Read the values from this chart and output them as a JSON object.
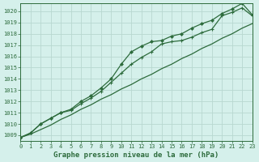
{
  "title": "",
  "xlabel": "Graphe pression niveau de la mer (hPa)",
  "ylabel": "",
  "bg_color": "#d5f0eb",
  "grid_color": "#b8d8d0",
  "line_color": "#2d6b3c",
  "xlim": [
    0,
    23
  ],
  "ylim": [
    1008.5,
    1020.7
  ],
  "yticks": [
    1009,
    1010,
    1011,
    1012,
    1013,
    1014,
    1015,
    1016,
    1017,
    1018,
    1019,
    1020
  ],
  "xticks": [
    0,
    1,
    2,
    3,
    4,
    5,
    6,
    7,
    8,
    9,
    10,
    11,
    12,
    13,
    14,
    15,
    16,
    17,
    18,
    19,
    20,
    21,
    22,
    23
  ],
  "line_upper_x": [
    0,
    1,
    2,
    3,
    4,
    5,
    6,
    7,
    8,
    9,
    10,
    11,
    12,
    13,
    14,
    15,
    16,
    17,
    18,
    19,
    20,
    21,
    22,
    23
  ],
  "line_upper_y": [
    1008.8,
    1009.2,
    1010.0,
    1010.5,
    1011.0,
    1011.3,
    1012.0,
    1012.5,
    1013.2,
    1014.0,
    1015.3,
    1016.4,
    1016.9,
    1017.3,
    1017.4,
    1017.8,
    1018.0,
    1018.5,
    1018.9,
    1019.2,
    1019.8,
    1020.2,
    1020.7,
    1019.7
  ],
  "line_mid_x": [
    0,
    1,
    2,
    3,
    4,
    5,
    6,
    7,
    8,
    9,
    10,
    11,
    12,
    13,
    14,
    15,
    16,
    17,
    18,
    19,
    20,
    21,
    22,
    23
  ],
  "line_mid_y": [
    1008.8,
    1009.2,
    1010.0,
    1010.5,
    1011.0,
    1011.2,
    1011.8,
    1012.3,
    1012.9,
    1013.7,
    1014.5,
    1015.3,
    1015.9,
    1016.4,
    1017.1,
    1017.3,
    1017.4,
    1017.7,
    1018.1,
    1018.4,
    1019.6,
    1019.9,
    1020.3,
    1019.6
  ],
  "line_lower_x": [
    0,
    1,
    2,
    3,
    4,
    5,
    6,
    7,
    8,
    9,
    10,
    11,
    12,
    13,
    14,
    15,
    16,
    17,
    18,
    19,
    20,
    21,
    22,
    23
  ],
  "line_lower_y": [
    1008.8,
    1009.1,
    1009.5,
    1009.9,
    1010.4,
    1010.8,
    1011.3,
    1011.7,
    1012.2,
    1012.6,
    1013.1,
    1013.5,
    1014.0,
    1014.4,
    1014.9,
    1015.3,
    1015.8,
    1016.2,
    1016.7,
    1017.1,
    1017.6,
    1018.0,
    1018.5,
    1018.9
  ],
  "xlabel_fontsize": 6.5,
  "tick_fontsize": 5,
  "xlabel_color": "#2d6b3c",
  "tick_color": "#2d6b3c",
  "spine_color": "#2d6b3c"
}
